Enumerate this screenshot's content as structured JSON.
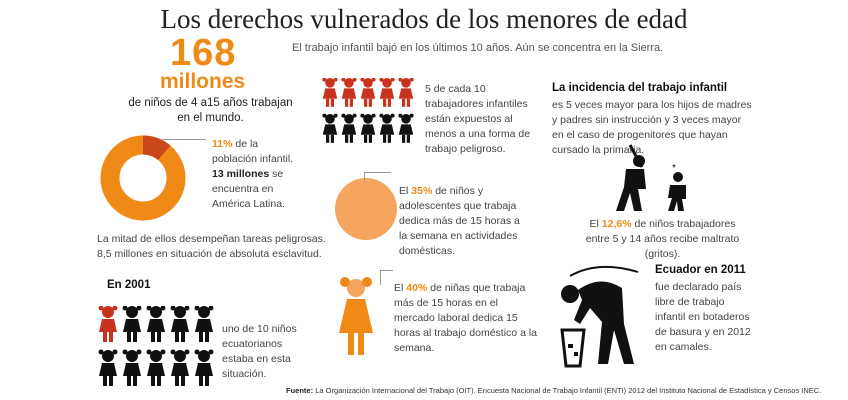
{
  "title": "Los derechos vulnerados de los menores de edad",
  "subtitle": "El trabajo infantil bajó en los últimos 10 años. Aún se concentra en la Sierra.",
  "headline": {
    "number": "168",
    "word": "millones",
    "desc": "de niños de 4 a15 años trabajan en el mundo."
  },
  "donut": {
    "percent_label": "11%",
    "line1": "de la población infantil.",
    "bold2": "13 millones",
    "line2": "se encuentra en América Latina.",
    "fraction": 0.11,
    "colors": {
      "main": "#f08a17",
      "slice": "#c9471a"
    }
  },
  "mitad": {
    "line1": "La mitad de ellos desempeñan tareas peligrosas.",
    "line2": "8,5 millones en situación de absoluta esclavitud."
  },
  "y2001": {
    "heading": "En 2001",
    "text": "uno de 10 niños ecuatorianos estaba en esta situación."
  },
  "cinco": {
    "text": "5 de cada 10 trabajadores infantiles están expuestos al menos a una forma de trabajo peligroso."
  },
  "treinta": {
    "pct": "35%",
    "pre": "El",
    "text": "de niños y adolescentes que trabaja dedica más de 15 horas a la semana en actividades domésticas."
  },
  "cuarenta": {
    "pct": "40%",
    "pre": "El",
    "text": "de niñas que trabaja más de 15 horas en el mercado laboral dedica 15 horas al trabajo doméstico a la semana."
  },
  "incidencia": {
    "heading": "La incidencia del trabajo infantil",
    "text": "es 5 veces mayor para los hijos de madres y padres sin instrucción y 3 veces mayor en el caso de progenitores que hayan cursado la primaria."
  },
  "maltrato": {
    "pre": "El",
    "pct": "12,6%",
    "text": "de niños trabajadores entre 5 y 14 años recibe maltrato (gritos)."
  },
  "ecuador": {
    "heading": "Ecuador en 2011",
    "text": "fue declarado país libre de trabajo infantil en botaderos de basura y en 2012 en camales."
  },
  "source": {
    "label": "Fuente:",
    "text": "La Organización Internacional del Trabajo (OIT). Encuesta Nacional de Trabajo Infantil (ENTI) 2012 del Instituto Nacional de Estadística y Censos INEC."
  },
  "colors": {
    "orange": "#f08a17",
    "red": "#c9321f",
    "black": "#111111",
    "peach": "#f5a55e"
  },
  "icons": [
    "child-figure-icon",
    "donut-chart-icon",
    "circle-icon",
    "girl-figure-icon",
    "adult-hitting-child-icon",
    "man-picking-trash-icon"
  ]
}
